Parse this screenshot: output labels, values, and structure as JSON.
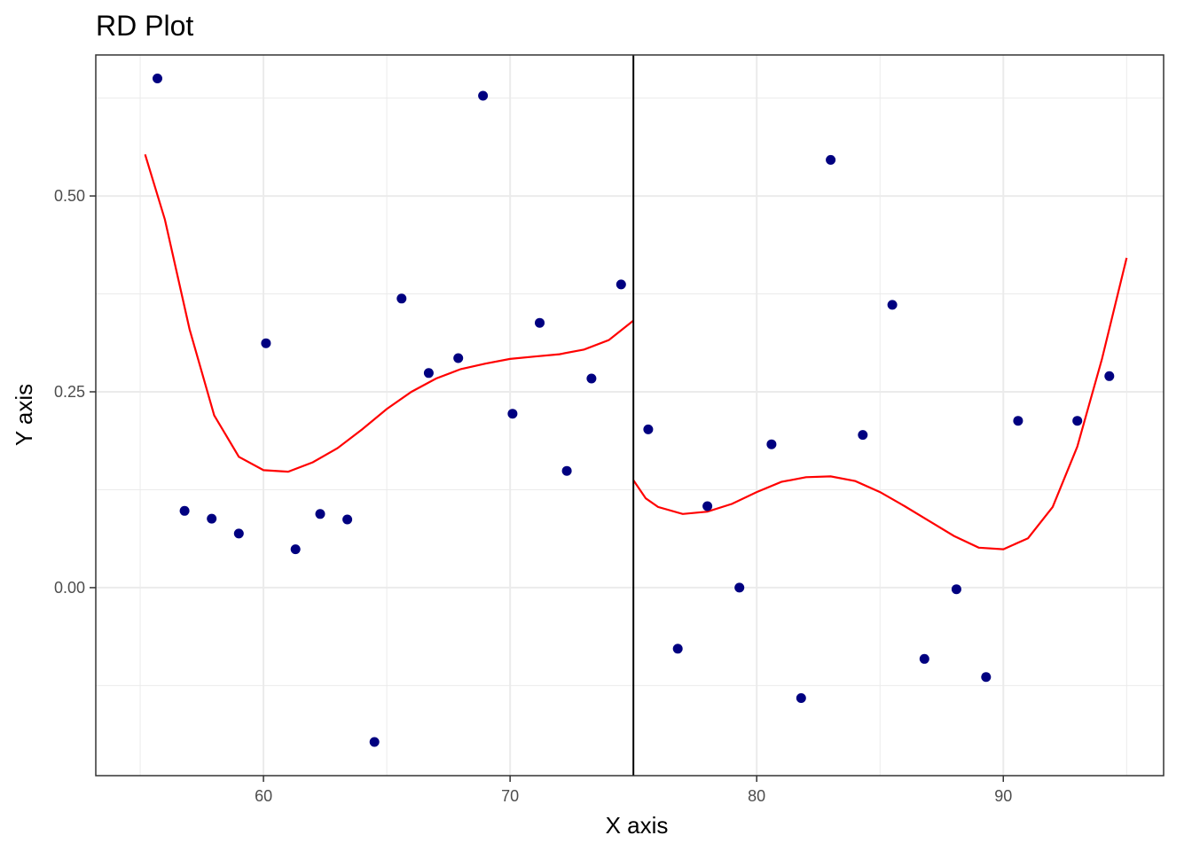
{
  "chart_data": {
    "type": "scatter",
    "title": "RD Plot",
    "xlabel": "X axis",
    "ylabel": "Y axis",
    "xlim": [
      53.2,
      96.5
    ],
    "ylim": [
      -0.24,
      0.68
    ],
    "x_ticks": [
      60,
      70,
      80,
      90
    ],
    "x_tick_labels": [
      "60",
      "70",
      "80",
      "90"
    ],
    "x_minor_ticks": [
      55,
      65,
      75,
      85,
      95
    ],
    "y_ticks": [
      0,
      0.25,
      0.5
    ],
    "y_tick_labels": [
      "0.00",
      "0.25",
      "0.50"
    ],
    "y_minor_ticks": [
      -0.125,
      0.125,
      0.375,
      0.625
    ],
    "grid": true,
    "cutoff": 75,
    "points": {
      "color": "#000080",
      "x": [
        55.7,
        56.8,
        57.9,
        59.0,
        60.1,
        61.3,
        62.3,
        63.4,
        64.5,
        65.6,
        66.7,
        67.9,
        68.9,
        70.1,
        71.2,
        72.3,
        73.3,
        74.5,
        75.6,
        76.8,
        78.0,
        79.3,
        80.6,
        81.8,
        83.0,
        84.3,
        85.5,
        86.8,
        88.1,
        89.3,
        90.6,
        93.0,
        94.3
      ],
      "y": [
        0.65,
        0.098,
        0.088,
        0.069,
        0.312,
        0.049,
        0.094,
        0.087,
        -0.197,
        0.369,
        0.274,
        0.293,
        0.628,
        0.222,
        0.338,
        0.149,
        0.267,
        0.387,
        0.202,
        -0.078,
        0.104,
        0.0,
        0.183,
        -0.141,
        0.546,
        0.195,
        0.361,
        -0.091,
        -0.002,
        -0.114,
        0.213,
        0.213,
        0.27
      ]
    },
    "fit_lines": [
      {
        "color": "#ff0000",
        "side": "left",
        "x": [
          55.2,
          56.0,
          57.0,
          58.0,
          59.0,
          60.0,
          61.0,
          62.0,
          63.0,
          64.0,
          65.0,
          66.0,
          67.0,
          68.0,
          69.0,
          70.0,
          71.0,
          72.0,
          73.0,
          74.0,
          75.0
        ],
        "y": [
          0.553,
          0.47,
          0.33,
          0.22,
          0.167,
          0.15,
          0.148,
          0.16,
          0.178,
          0.202,
          0.228,
          0.25,
          0.267,
          0.279,
          0.286,
          0.292,
          0.295,
          0.298,
          0.304,
          0.316,
          0.341
        ]
      },
      {
        "color": "#ff0000",
        "side": "right",
        "x": [
          75.0,
          75.5,
          76.0,
          77.0,
          78.0,
          79.0,
          80.0,
          81.0,
          82.0,
          83.0,
          84.0,
          85.0,
          86.0,
          87.0,
          88.0,
          89.0,
          90.0,
          91.0,
          92.0,
          93.0,
          94.0,
          95.0
        ],
        "y": [
          0.137,
          0.114,
          0.103,
          0.094,
          0.097,
          0.107,
          0.122,
          0.135,
          0.141,
          0.142,
          0.136,
          0.122,
          0.104,
          0.085,
          0.066,
          0.051,
          0.049,
          0.063,
          0.103,
          0.18,
          0.292,
          0.421
        ]
      }
    ]
  }
}
